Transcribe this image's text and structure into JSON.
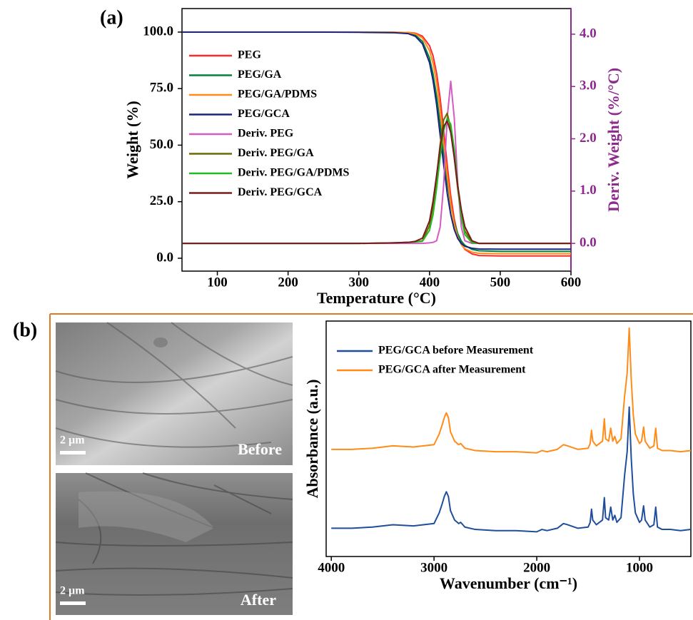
{
  "chart_data": [
    {
      "type": "line",
      "panel_label": "(a)",
      "x_label": "Temperature (°C)",
      "y_label": "Weight (%)",
      "y2_label": "Deriv. Weight (%/°C)",
      "xlim": [
        50,
        600
      ],
      "xticks": [
        100,
        200,
        300,
        400,
        500,
        600
      ],
      "ylim": [
        -5.7,
        110.4
      ],
      "yticks": [
        {
          "value": 0,
          "label": "0.0"
        },
        {
          "value": 25,
          "label": "25.0"
        },
        {
          "value": 50,
          "label": "50.0"
        },
        {
          "value": 75,
          "label": "75.0"
        },
        {
          "value": 100,
          "label": "100.0"
        }
      ],
      "y2lim": [
        -0.53,
        4.49
      ],
      "y2ticks": [
        {
          "value": 0,
          "label": "0.0"
        },
        {
          "value": 1,
          "label": "1.0"
        },
        {
          "value": 2,
          "label": "2.0"
        },
        {
          "value": 3,
          "label": "3.0"
        },
        {
          "value": 4,
          "label": "4.0"
        }
      ],
      "y2_color": "#8e2a8e",
      "legend": "upper left",
      "x": [
        50,
        100,
        150,
        200,
        250,
        300,
        350,
        370,
        380,
        390,
        400,
        405,
        410,
        415,
        420,
        425,
        430,
        435,
        440,
        445,
        450,
        460,
        470,
        500,
        550,
        600
      ],
      "series": [
        {
          "name": "PEG",
          "color": "#ff2a2a",
          "values": [
            100,
            100,
            100,
            100,
            100,
            100,
            99.9,
            99.8,
            99.5,
            98.2,
            94.0,
            89.5,
            81.9,
            70.9,
            56.7,
            41.3,
            27.6,
            17.3,
            10.4,
            6.3,
            3.9,
            1.9,
            1.2,
            1.0,
            1.0,
            1.0
          ]
        },
        {
          "name": "PEG/GA",
          "color": "#00843d",
          "values": [
            100,
            100,
            100,
            100,
            100,
            100,
            99.9,
            99.5,
            98.6,
            95.9,
            88.5,
            81.5,
            71.7,
            59.5,
            46.1,
            33.5,
            23.3,
            15.8,
            10.8,
            7.6,
            5.7,
            3.9,
            3.3,
            3.0,
            3.0,
            3.0
          ]
        },
        {
          "name": "PEG/GA/PDMS",
          "color": "#ff8c1a",
          "values": [
            100,
            100,
            100,
            100,
            100,
            100,
            99.9,
            99.8,
            99.2,
            97.4,
            91.8,
            86.2,
            77.6,
            65.3,
            51.0,
            36.5,
            24.0,
            15.0,
            9.3,
            6.0,
            4.2,
            2.7,
            2.2,
            2.0,
            2.0,
            2.0
          ]
        },
        {
          "name": "PEG/GCA",
          "color": "#1a237e",
          "values": [
            100,
            100,
            100,
            100,
            100,
            99.9,
            99.7,
            99.3,
            98.1,
            94.8,
            86.5,
            78.6,
            68.0,
            54.6,
            41.3,
            28.8,
            19.3,
            12.7,
            8.7,
            6.5,
            5.3,
            4.4,
            4.1,
            4.0,
            4.0,
            4.0
          ]
        },
        {
          "name": "Deriv. PEG",
          "color": "#d55bc3",
          "axis": "y2",
          "values": [
            0,
            0,
            0,
            0,
            0,
            0,
            0,
            0,
            0,
            0,
            0.01,
            0.02,
            0.05,
            0.31,
            1.12,
            2.4,
            3.1,
            2.4,
            1.12,
            0.31,
            0.05,
            0,
            0,
            0,
            0,
            0
          ]
        },
        {
          "name": "Deriv. PEG/GA",
          "color": "#6b6b00",
          "axis": "y2",
          "values": [
            0,
            0,
            0,
            0,
            0,
            0,
            0.01,
            0.02,
            0.03,
            0.05,
            0.34,
            0.71,
            1.27,
            1.89,
            2.36,
            2.49,
            2.2,
            1.64,
            1.03,
            0.54,
            0.24,
            0.02,
            0,
            0,
            0,
            0
          ]
        },
        {
          "name": "Deriv. PEG/GA/PDMS",
          "color": "#22bb22",
          "axis": "y2",
          "values": [
            0,
            0,
            0,
            0,
            0,
            0,
            0.01,
            0.02,
            0.03,
            0.04,
            0.25,
            0.55,
            1.05,
            1.65,
            2.15,
            2.39,
            2.28,
            1.8,
            1.1,
            0.5,
            0.17,
            0.01,
            0,
            0,
            0,
            0
          ]
        },
        {
          "name": "Deriv. PEG/GCA",
          "color": "#7a1b1b",
          "axis": "y2",
          "values": [
            0,
            0,
            0,
            0,
            0,
            0,
            0.01,
            0.02,
            0.04,
            0.1,
            0.43,
            0.81,
            1.3,
            1.83,
            2.24,
            2.34,
            2.12,
            1.64,
            1.1,
            0.64,
            0.32,
            0.05,
            0,
            0,
            0,
            0
          ]
        }
      ]
    },
    {
      "type": "line",
      "panel_label": "(b)",
      "x_label": "Wavenumber (cm⁻¹)",
      "y_label": "Absorbance (a.u.)",
      "xlim": [
        4050,
        500
      ],
      "xticks": [
        4000,
        3000,
        2000,
        1000
      ],
      "ylim": [
        0,
        10
      ],
      "legend": "upper left",
      "x": [
        4000,
        3800,
        3600,
        3400,
        3200,
        3000,
        2950,
        2920,
        2900,
        2880,
        2860,
        2840,
        2800,
        2760,
        2740,
        2700,
        2600,
        2400,
        2200,
        2000,
        1950,
        1900,
        1800,
        1740,
        1700,
        1600,
        1500,
        1480,
        1467,
        1455,
        1420,
        1360,
        1342,
        1330,
        1300,
        1280,
        1260,
        1240,
        1220,
        1180,
        1145,
        1120,
        1100,
        1080,
        1060,
        1040,
        1000,
        980,
        960,
        945,
        900,
        860,
        842,
        825,
        780,
        700,
        600,
        500
      ],
      "series": [
        {
          "name": "PEG/GCA before Measurement",
          "color": "#1f4e9c",
          "values": [
            1.2,
            1.2,
            1.25,
            1.35,
            1.3,
            1.4,
            1.85,
            2.25,
            2.55,
            2.75,
            2.55,
            1.95,
            1.55,
            1.4,
            1.45,
            1.25,
            1.15,
            1.1,
            1.1,
            1.05,
            1.15,
            1.1,
            1.2,
            1.4,
            1.35,
            1.2,
            1.25,
            1.45,
            2.01,
            1.55,
            1.35,
            1.55,
            2.5,
            1.65,
            1.55,
            2.1,
            1.55,
            1.75,
            1.45,
            1.65,
            3.45,
            4.45,
            6.35,
            4.15,
            2.65,
            1.85,
            1.45,
            1.55,
            2.15,
            1.55,
            1.25,
            1.35,
            2.1,
            1.25,
            1.15,
            1.15,
            1.1,
            1.15
          ]
        },
        {
          "name": "PEG/GCA after Measurement",
          "color": "#ff8c1a",
          "values": [
            4.55,
            4.55,
            4.6,
            4.7,
            4.65,
            4.75,
            5.2,
            5.6,
            5.9,
            6.1,
            5.9,
            5.3,
            4.9,
            4.75,
            4.8,
            4.6,
            4.5,
            4.45,
            4.45,
            4.4,
            4.5,
            4.45,
            4.55,
            4.75,
            4.7,
            4.55,
            4.6,
            4.8,
            5.36,
            4.9,
            4.7,
            4.9,
            5.85,
            5.0,
            4.9,
            5.45,
            4.9,
            5.1,
            4.8,
            5.0,
            6.8,
            7.8,
            9.7,
            7.5,
            6.0,
            5.2,
            4.8,
            4.9,
            5.5,
            4.9,
            4.6,
            4.7,
            5.45,
            4.6,
            4.5,
            4.5,
            4.45,
            4.5
          ]
        }
      ]
    }
  ],
  "images": [
    {
      "label": "Before",
      "scale_bar": "2 µm"
    },
    {
      "label": "After",
      "scale_bar": "2 µm"
    }
  ]
}
